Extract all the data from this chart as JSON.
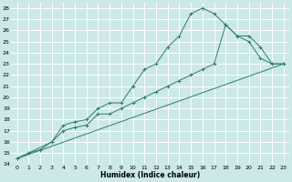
{
  "xlabel": "Humidex (Indice chaleur)",
  "bg_color": "#cce8e8",
  "grid_color": "#ffffff",
  "line_color": "#2e7d6e",
  "xlim": [
    -0.5,
    23.5
  ],
  "ylim": [
    14,
    28.5
  ],
  "yticks": [
    14,
    15,
    16,
    17,
    18,
    19,
    20,
    21,
    22,
    23,
    24,
    25,
    26,
    27,
    28
  ],
  "xticks": [
    0,
    1,
    2,
    3,
    4,
    5,
    6,
    7,
    8,
    9,
    10,
    11,
    12,
    13,
    14,
    15,
    16,
    17,
    18,
    19,
    20,
    21,
    22,
    23
  ],
  "series": [
    {
      "x": [
        0,
        1,
        2,
        3,
        4,
        5,
        6,
        7,
        8,
        9,
        10,
        11,
        12,
        13,
        14,
        15,
        16,
        17,
        18,
        19,
        20,
        21,
        22,
        23
      ],
      "y": [
        14.5,
        15.0,
        15.3,
        16.0,
        17.5,
        17.8,
        18.0,
        19.0,
        19.5,
        19.5,
        21.0,
        22.5,
        23.0,
        24.5,
        25.5,
        27.5,
        28.0,
        27.5,
        26.5,
        25.5,
        25.0,
        23.5,
        23.0,
        23.0
      ]
    },
    {
      "x": [
        0,
        3,
        4,
        5,
        6,
        7,
        8,
        9,
        10,
        11,
        12,
        13,
        14,
        15,
        16,
        17,
        18,
        19,
        20,
        21,
        22,
        23
      ],
      "y": [
        14.5,
        16.0,
        17.0,
        17.3,
        17.5,
        18.5,
        18.5,
        19.0,
        19.5,
        20.0,
        20.5,
        21.0,
        21.5,
        22.0,
        22.5,
        23.0,
        26.5,
        25.5,
        25.5,
        24.5,
        23.0,
        23.0
      ]
    },
    {
      "x": [
        0,
        23
      ],
      "y": [
        14.5,
        23.0
      ]
    }
  ]
}
